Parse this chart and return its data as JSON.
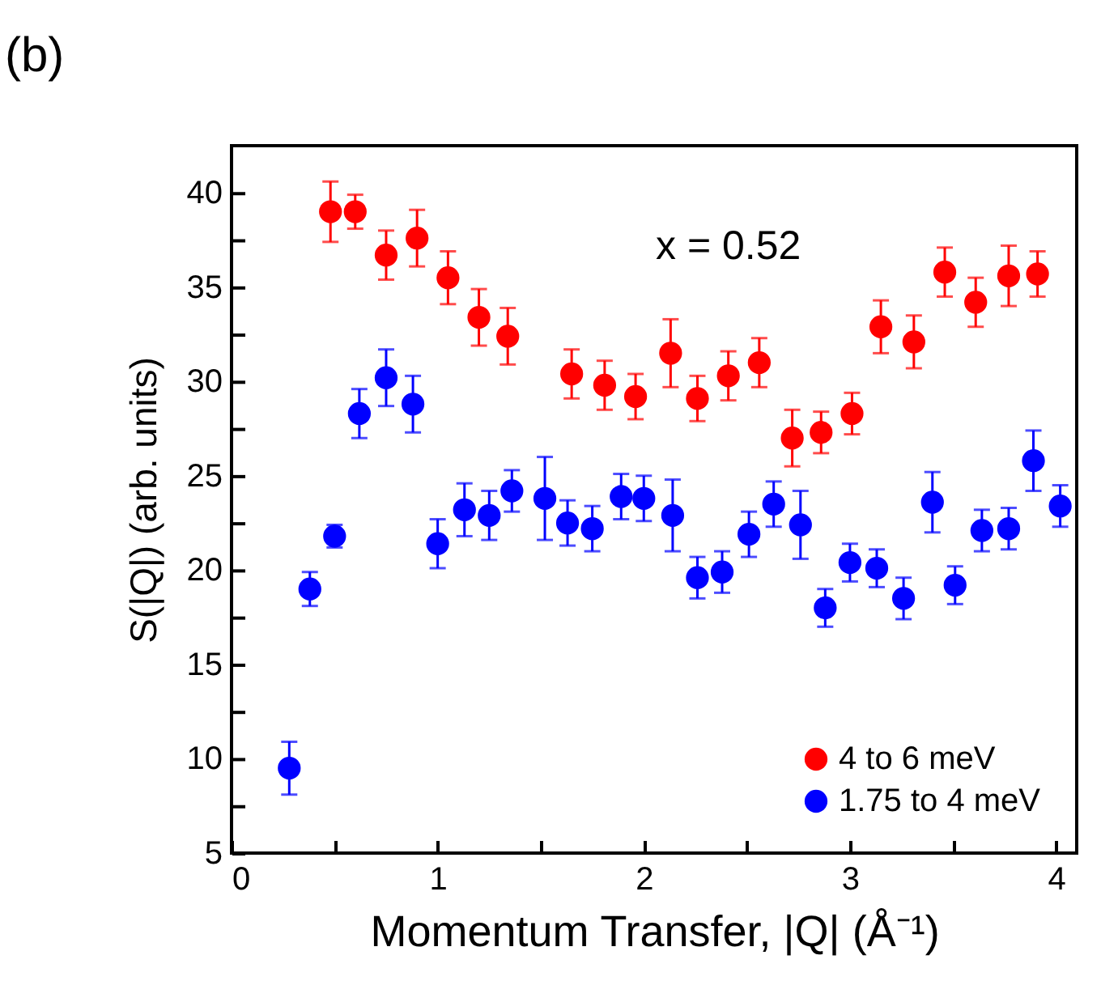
{
  "chart_data": {
    "type": "scatter",
    "title": "(b)",
    "xlabel": "Momentum Transfer, |Q| (Å⁻¹)",
    "ylabel": "S(|Q|) (arb. units)",
    "annotations": [
      "x = 0.52"
    ],
    "xlim": [
      0,
      4.1
    ],
    "xticks": [
      0,
      {
        "value": 0.5,
        "label": null
      },
      1,
      {
        "value": 1.5,
        "label": null
      },
      2,
      {
        "value": 2.5,
        "label": null
      },
      3,
      {
        "value": 3.5,
        "label": null
      },
      4
    ],
    "ylim": [
      5,
      42.5
    ],
    "yticks": [
      5,
      {
        "value": 7.5,
        "label": null
      },
      10,
      {
        "value": 12.5,
        "label": null
      },
      15,
      {
        "value": 17.5,
        "label": null
      },
      20,
      {
        "value": 22.5,
        "label": null
      },
      25,
      {
        "value": 27.5,
        "label": null
      },
      30,
      {
        "value": 32.5,
        "label": null
      },
      35,
      {
        "value": 37.5,
        "label": null
      },
      40
    ],
    "marker": "circle",
    "legend": "bottom right",
    "grid": false,
    "series": [
      {
        "name": "4 to 6 meV",
        "color": "#ff0000",
        "x": [
          0.48,
          0.6,
          0.75,
          0.9,
          1.05,
          1.2,
          1.34,
          1.65,
          1.81,
          1.96,
          2.13,
          2.26,
          2.41,
          2.56,
          2.72,
          2.86,
          3.01,
          3.15,
          3.31,
          3.46,
          3.61,
          3.77,
          3.91
        ],
        "values": [
          39.0,
          39.0,
          36.7,
          37.6,
          35.5,
          33.4,
          32.4,
          30.4,
          29.8,
          29.2,
          31.5,
          29.1,
          30.3,
          31.0,
          27.0,
          27.3,
          28.3,
          32.9,
          32.1,
          35.8,
          34.2,
          35.6,
          35.7
        ],
        "errors": [
          1.6,
          0.9,
          1.3,
          1.5,
          1.4,
          1.5,
          1.5,
          1.3,
          1.3,
          1.2,
          1.8,
          1.2,
          1.3,
          1.3,
          1.5,
          1.1,
          1.1,
          1.4,
          1.4,
          1.3,
          1.3,
          1.6,
          1.2
        ]
      },
      {
        "name": "1.75 to 4 meV",
        "color": "#0000ff",
        "x": [
          0.28,
          0.38,
          0.5,
          0.62,
          0.75,
          0.88,
          1.0,
          1.13,
          1.25,
          1.36,
          1.52,
          1.63,
          1.75,
          1.89,
          2.0,
          2.14,
          2.26,
          2.38,
          2.51,
          2.63,
          2.76,
          2.88,
          3.0,
          3.13,
          3.26,
          3.4,
          3.51,
          3.64,
          3.77,
          3.89,
          4.02
        ],
        "values": [
          9.5,
          19.0,
          21.8,
          28.3,
          30.2,
          28.8,
          21.4,
          23.2,
          22.9,
          24.2,
          23.8,
          22.5,
          22.2,
          23.9,
          23.8,
          22.9,
          19.6,
          19.9,
          21.9,
          23.5,
          22.4,
          18.0,
          20.4,
          20.1,
          18.5,
          23.6,
          19.2,
          22.1,
          22.2,
          25.8,
          23.4
        ],
        "errors": [
          1.4,
          0.9,
          0.6,
          1.3,
          1.5,
          1.5,
          1.3,
          1.4,
          1.3,
          1.1,
          2.2,
          1.2,
          1.2,
          1.2,
          1.2,
          1.9,
          1.1,
          1.1,
          1.2,
          1.2,
          1.8,
          1.0,
          1.0,
          1.0,
          1.1,
          1.6,
          1.0,
          1.1,
          1.1,
          1.6,
          1.1
        ]
      }
    ]
  }
}
